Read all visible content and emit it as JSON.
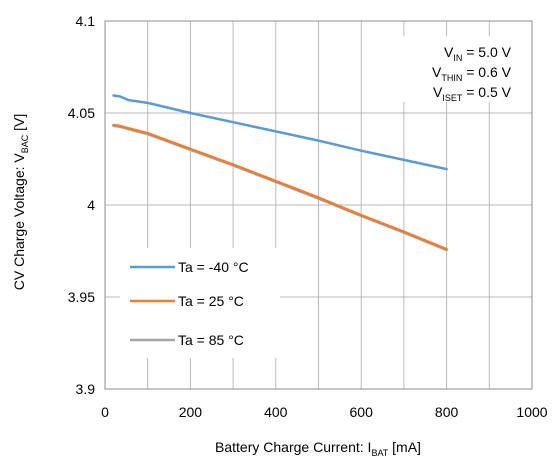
{
  "chart_data": {
    "type": "line",
    "xlabel": {
      "main": "Battery Charge Current: I",
      "sub": "BAT",
      "tail": " [mA]"
    },
    "ylabel": {
      "main": "CV Charge Voltage: V",
      "sub": "BAC",
      "tail": " [V]"
    },
    "xlim": [
      0,
      1000
    ],
    "ylim": [
      3.9,
      4.1
    ],
    "x_ticks": [
      "0",
      "200",
      "400",
      "600",
      "800",
      "1000"
    ],
    "y_ticks": [
      "4.1",
      "4.05",
      "4",
      "3.95",
      "3.9"
    ],
    "x_tick_values": [
      0,
      200,
      400,
      600,
      800,
      1000
    ],
    "y_tick_values": [
      4.1,
      4.05,
      4.0,
      3.95,
      3.9
    ],
    "x_minor_step": 100,
    "grid": true,
    "legend_position": "bottom-left",
    "annotation": [
      {
        "main": "V",
        "sub": "IN",
        "tail": " = 5.0 V"
      },
      {
        "main": "V",
        "sub": "THIN",
        "tail": " = 0.6 V"
      },
      {
        "main": "V",
        "sub": "ISET",
        "tail": " = 0.5 V"
      }
    ],
    "series": [
      {
        "name": "Ta =  -40 °C",
        "color": "#5B9BD5",
        "x": [
          20,
          35,
          55,
          70,
          100,
          200,
          300,
          400,
          500,
          600,
          700,
          800
        ],
        "y": [
          4.0595,
          4.059,
          4.057,
          4.0565,
          4.0555,
          4.05,
          4.045,
          4.04,
          4.035,
          4.0295,
          4.0245,
          4.0195
        ]
      },
      {
        "name": "Ta =  25 °C",
        "color": "#ED7D31",
        "x": [
          20,
          35,
          50,
          100,
          200,
          300,
          400,
          500,
          600,
          700,
          800
        ],
        "y": [
          4.0435,
          4.043,
          4.042,
          4.039,
          4.0305,
          4.022,
          4.013,
          4.004,
          3.9945,
          3.9855,
          3.976
        ]
      },
      {
        "name": "Ta =  85 °C",
        "color": "#A5A5A5",
        "x": [
          20,
          35,
          50,
          100,
          200,
          300,
          400,
          500,
          600,
          700,
          800
        ],
        "y": [
          4.043,
          4.0425,
          4.0415,
          4.0385,
          4.03,
          4.0215,
          4.0125,
          4.0035,
          3.994,
          3.985,
          3.9755
        ]
      }
    ]
  }
}
